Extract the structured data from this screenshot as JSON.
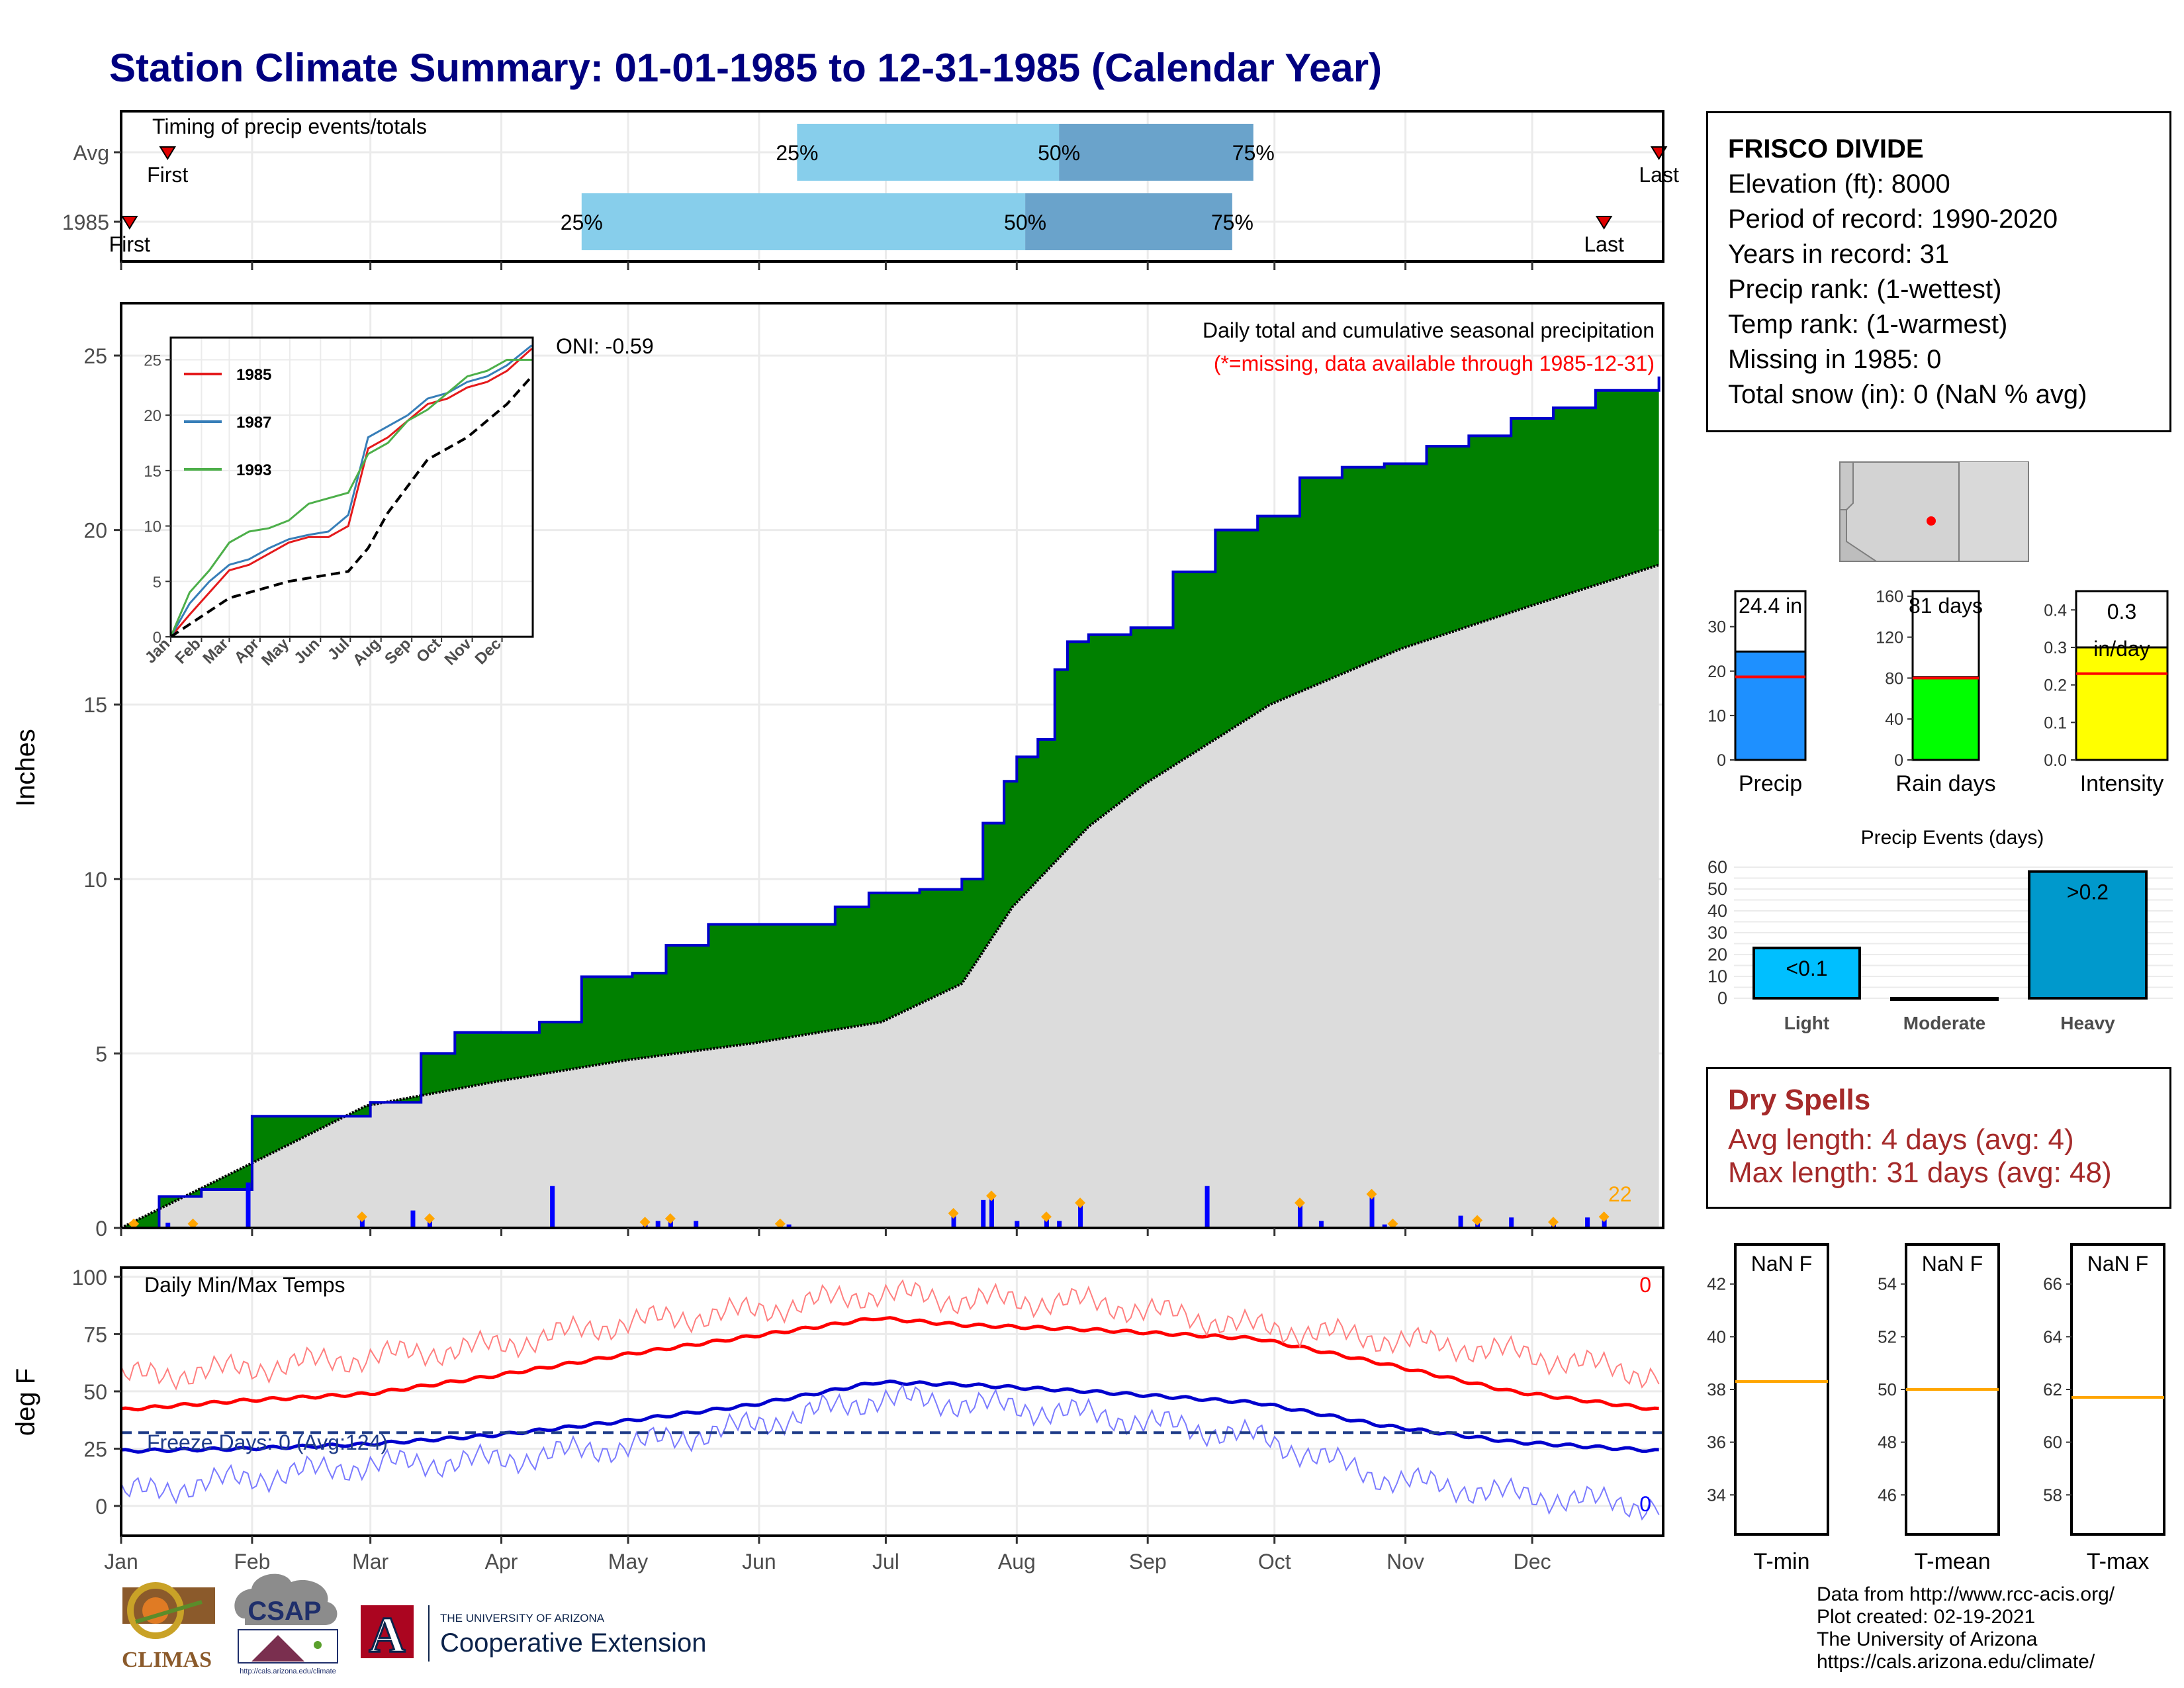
{
  "title": "Station Climate Summary: 01-01-1985 to 12-31-1985 (Calendar Year)",
  "timing_panel": {
    "label": "Timing of precip events/totals",
    "rows": [
      {
        "label": "Avg",
        "q25_day": 161,
        "q50_day": 223,
        "q75_day": 269,
        "first_day": 12,
        "last_day": 365,
        "first_label": "First",
        "last_label": "Last"
      },
      {
        "label": "1985",
        "q25_day": 110,
        "q50_day": 215,
        "q75_day": 264,
        "first_day": 3,
        "last_day": 352,
        "first_label": "First",
        "last_label": "Last"
      }
    ],
    "pct_labels": [
      "25%",
      "50%",
      "75%"
    ],
    "colors": {
      "q1": "#87ceeb",
      "q2": "#6aa3cb"
    }
  },
  "station": {
    "name": "FRISCO DIVIDE",
    "lines": [
      "Elevation (ft): 8000",
      "Period of record: 1990-2020",
      "Years in record: 31",
      "Precip rank:  (1-wettest)",
      "Temp rank:  (1-warmest)",
      "Missing in 1985: 0",
      "Total snow (in): 0 (NaN % avg)"
    ]
  },
  "precip_chart": {
    "ylabel": "Inches",
    "oni": "ONI: -0.59",
    "title": "Daily total and cumulative seasonal precipitation",
    "subtitle": "(*=missing, data available through 1985-12-31)",
    "count_label": "22",
    "yticks": [
      0,
      5,
      10,
      15,
      20,
      25
    ],
    "ylim": [
      0,
      26.5
    ],
    "colors": {
      "above": "#008000",
      "normal": "#dcdcdc",
      "line": "#0000cd",
      "bars": "#0000ff",
      "marker": "#ffa500",
      "subtitle": "#ff0000",
      "count": "#ffa500"
    }
  },
  "inset": {
    "legend": [
      "1985",
      "1987",
      "1993"
    ],
    "colors": [
      "#e41a1c",
      "#377eb8",
      "#4daf4a"
    ],
    "yticks": [
      0,
      5,
      10,
      15,
      20,
      25
    ],
    "months": [
      "Jan",
      "Feb",
      "Mar",
      "Apr",
      "May",
      "Jun",
      "Jul",
      "Aug",
      "Sep",
      "Oct",
      "Nov",
      "Dec"
    ]
  },
  "temp_chart": {
    "ylabel": "deg F",
    "title": "Daily Min/Max Temps",
    "freeze_label": "Freeze Days: 0 (Avg:124)",
    "count_max": "0",
    "count_min": "0",
    "yticks": [
      0,
      25,
      50,
      75,
      100
    ],
    "ylim": [
      -13,
      104
    ],
    "freeze_line": 32,
    "colors": {
      "max_avg": "#ff0000",
      "max_daily": "#ff8080",
      "min_avg": "#0000cd",
      "min_daily": "#7b7bff",
      "freeze": "#1f3c88"
    }
  },
  "months": [
    "Jan",
    "Feb",
    "Mar",
    "Apr",
    "May",
    "Jun",
    "Jul",
    "Aug",
    "Sep",
    "Oct",
    "Nov",
    "Dec"
  ],
  "mini_bars": [
    {
      "label": "Precip",
      "value_label": "24.4 in",
      "value": 24.4,
      "avg": 18.7,
      "ylim": [
        0,
        38
      ],
      "yticks": [
        "0",
        "10",
        "20",
        "30"
      ],
      "color": "#1e90ff"
    },
    {
      "label": "Rain days",
      "value_label": "81 days",
      "value": 81,
      "avg": 80,
      "ylim": [
        0,
        165
      ],
      "yticks": [
        "0",
        "40",
        "80",
        "120",
        "160"
      ],
      "color": "#00ff00"
    },
    {
      "label": "Intensity",
      "value_label": "0.3 in/day",
      "value": 0.3,
      "avg": 0.23,
      "ylim": [
        0,
        0.45
      ],
      "yticks": [
        "0.0",
        "0.1",
        "0.2",
        "0.3",
        "0.4"
      ],
      "color": "#ffff00"
    }
  ],
  "precip_events": {
    "title": "Precip Events (days)",
    "categories": [
      "Light",
      "Moderate",
      "Heavy"
    ],
    "values": [
      23,
      0,
      58
    ],
    "labels": [
      "<0.1",
      "",
      ">0.2"
    ],
    "colors": [
      "#00bfff",
      "#1e90ff",
      "#0099cc"
    ],
    "yticks": [
      "0",
      "10",
      "20",
      "30",
      "40",
      "50",
      "60"
    ]
  },
  "dry_spells": {
    "title": "Dry Spells",
    "avg_line": "Avg length: 4 days (avg: 4)",
    "max_line": "Max length: 31 days (avg: 48)"
  },
  "temp_boxes": [
    {
      "label": "T-min",
      "value_label": "NaN F",
      "avg": 38.3,
      "yticks": [
        "34",
        "36",
        "38",
        "40",
        "42"
      ]
    },
    {
      "label": "T-mean",
      "value_label": "NaN F",
      "avg": 50,
      "yticks": [
        "46",
        "48",
        "50",
        "52",
        "54"
      ]
    },
    {
      "label": "T-max",
      "value_label": "NaN F",
      "avg": 61.7,
      "yticks": [
        "58",
        "60",
        "62",
        "64",
        "66"
      ]
    }
  ],
  "footer": [
    "Data from http://www.rcc-acis.org/",
    "Plot created: 02-19-2021",
    "The University of Arizona",
    "https://cals.arizona.edu/climate/"
  ],
  "logos": {
    "climas": "CLIMAS",
    "csap": "CSAP",
    "csap_url": "http://cals.arizona.edu/climate",
    "ua_small": "THE UNIVERSITY OF ARIZONA",
    "ua_big": "Cooperative Extension",
    "ua_letter": "A"
  },
  "chart_data": [
    {
      "type": "area",
      "title": "Daily total and cumulative seasonal precipitation",
      "ylabel": "Inches",
      "ylim": [
        0,
        26.5
      ],
      "cumulative_1985": {
        "x_day": [
          1,
          10,
          20,
          32,
          40,
          60,
          72,
          80,
          100,
          110,
          122,
          130,
          140,
          150,
          160,
          170,
          178,
          190,
          200,
          205,
          210,
          213,
          218,
          222,
          225,
          230,
          240,
          250,
          260,
          270,
          280,
          290,
          300,
          310,
          320,
          330,
          340,
          350,
          365
        ],
        "y": [
          0,
          0.9,
          1.1,
          3.2,
          3.2,
          3.6,
          5.0,
          5.6,
          5.9,
          7.2,
          7.3,
          8.1,
          8.7,
          8.7,
          8.7,
          9.2,
          9.6,
          9.7,
          10.0,
          11.6,
          12.8,
          13.5,
          14.0,
          16.0,
          16.8,
          17.0,
          17.2,
          18.8,
          20.0,
          20.4,
          21.5,
          21.8,
          21.9,
          22.4,
          22.7,
          23.2,
          23.5,
          24.0,
          24.4
        ]
      },
      "normal_cumulative": {
        "x_day": [
          1,
          31,
          59,
          90,
          120,
          151,
          181,
          200,
          212,
          230,
          243,
          273,
          304,
          334,
          365
        ],
        "y": [
          0,
          1.8,
          3.5,
          4.2,
          4.8,
          5.3,
          5.9,
          7.0,
          9.2,
          11.5,
          12.7,
          15.0,
          16.6,
          17.8,
          19.0
        ]
      },
      "daily_precip": {
        "x_day": [
          4,
          12,
          18,
          31,
          58,
          70,
          74,
          103,
          125,
          128,
          131,
          137,
          157,
          159,
          198,
          205,
          207,
          213,
          220,
          223,
          228,
          258,
          280,
          285,
          297,
          300,
          302,
          318,
          322,
          330,
          340,
          348,
          352
        ],
        "y": [
          0.1,
          0.15,
          0.1,
          1.3,
          0.3,
          0.5,
          0.25,
          1.2,
          0.15,
          0.2,
          0.25,
          0.2,
          0.1,
          0.1,
          0.4,
          0.8,
          0.9,
          0.2,
          0.3,
          0.2,
          0.7,
          1.2,
          0.7,
          0.2,
          0.95,
          0.1,
          0.1,
          0.35,
          0.2,
          0.3,
          0.15,
          0.3,
          0.3
        ]
      }
    },
    {
      "type": "line",
      "title": "",
      "ylim": [
        0,
        27
      ],
      "series": [
        {
          "name": "1985",
          "x_day": [
            1,
            20,
            40,
            60,
            80,
            100,
            120,
            140,
            160,
            180,
            200,
            220,
            240,
            260,
            280,
            300,
            320,
            340,
            365
          ],
          "y": [
            0,
            2,
            4,
            6,
            6.5,
            7.5,
            8.5,
            9,
            9,
            10,
            17,
            18,
            19.5,
            21,
            21.5,
            22.5,
            23,
            24,
            26
          ]
        },
        {
          "name": "1987",
          "x_day": [
            1,
            20,
            40,
            60,
            80,
            100,
            120,
            140,
            160,
            180,
            200,
            220,
            240,
            260,
            280,
            300,
            320,
            340,
            365
          ],
          "y": [
            0,
            3,
            5,
            6.5,
            7,
            8,
            8.8,
            9.2,
            9.5,
            11,
            18,
            19,
            20,
            21.5,
            22,
            23,
            23.5,
            24.5,
            26.3
          ]
        },
        {
          "name": "1993",
          "x_day": [
            1,
            20,
            40,
            60,
            80,
            100,
            120,
            140,
            160,
            180,
            200,
            220,
            240,
            260,
            280,
            300,
            320,
            340,
            365
          ],
          "y": [
            0,
            4,
            6,
            8.5,
            9.5,
            9.8,
            10.5,
            12,
            12.5,
            13,
            16.5,
            17.5,
            19.5,
            20.5,
            22,
            23.5,
            24,
            25,
            25
          ]
        },
        {
          "name": "avg",
          "x_day": [
            1,
            60,
            120,
            180,
            200,
            220,
            260,
            300,
            340,
            365
          ],
          "y": [
            0,
            3.5,
            5,
            5.9,
            8,
            11.2,
            16,
            18,
            21,
            23.5
          ]
        }
      ]
    },
    {
      "type": "line",
      "title": "Daily Min/Max Temps",
      "ylabel": "deg F",
      "ylim": [
        -13,
        104
      ],
      "series": [
        {
          "name": "Tmax avg",
          "x_day": [
            1,
            30,
            60,
            90,
            120,
            150,
            180,
            200,
            230,
            270,
            300,
            330,
            365
          ],
          "y": [
            42,
            46,
            49,
            57,
            66,
            74,
            82,
            79,
            77,
            73,
            62,
            50,
            42
          ]
        },
        {
          "name": "Tmin avg",
          "x_day": [
            1,
            30,
            60,
            90,
            120,
            150,
            180,
            200,
            230,
            270,
            300,
            330,
            365
          ],
          "y": [
            24,
            25,
            27,
            31,
            37,
            44,
            54,
            53,
            50,
            45,
            35,
            28,
            24
          ]
        },
        {
          "name": "Tmax daily",
          "x_day": [
            1,
            30,
            60,
            90,
            120,
            150,
            180,
            200,
            230,
            270,
            300,
            330,
            365
          ],
          "y": [
            56,
            60,
            65,
            70,
            80,
            85,
            93,
            90,
            89,
            78,
            73,
            67,
            57
          ]
        },
        {
          "name": "Tmin daily",
          "x_day": [
            1,
            30,
            60,
            90,
            120,
            150,
            180,
            200,
            230,
            270,
            300,
            330,
            365
          ],
          "y": [
            5,
            12,
            18,
            20,
            26,
            35,
            47,
            45,
            40,
            30,
            12,
            5,
            0
          ]
        }
      ]
    }
  ]
}
